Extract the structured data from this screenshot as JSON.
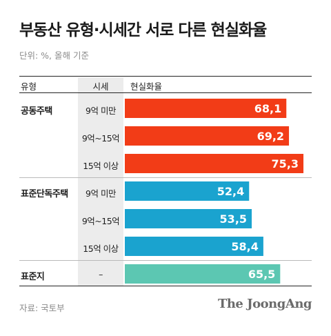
{
  "title": "부동산 유형·시세간 서로 다른 현실화율",
  "unit_note": "단위: %, 올해 기준",
  "headers": {
    "type": "유형",
    "price": "시세",
    "rate": "현실화율"
  },
  "source": "자료: 국토부",
  "brand": "The JoongAng",
  "colors": {
    "apartment": "#f23c17",
    "house": "#1aa3cf",
    "land": "#5cc7b2"
  },
  "chart_data": {
    "type": "bar",
    "orientation": "horizontal",
    "xlim": [
      0,
      100
    ],
    "groups": [
      {
        "type": "공동주택",
        "color_key": "apartment",
        "rows": [
          {
            "price": "9억 미만",
            "value": 68.1,
            "label": "68,1"
          },
          {
            "price": "9억~15억",
            "value": 69.2,
            "label": "69,2"
          },
          {
            "price": "15억 이상",
            "value": 75.3,
            "label": "75,3"
          }
        ]
      },
      {
        "type": "표준단독주택",
        "color_key": "house",
        "rows": [
          {
            "price": "9억 미만",
            "value": 52.4,
            "label": "52,4"
          },
          {
            "price": "9억~15억",
            "value": 53.5,
            "label": "53,5"
          },
          {
            "price": "15억 이상",
            "value": 58.4,
            "label": "58,4"
          }
        ]
      },
      {
        "type": "표준지",
        "color_key": "land",
        "rows": [
          {
            "price": "–",
            "value": 65.5,
            "label": "65,5"
          }
        ]
      }
    ]
  }
}
